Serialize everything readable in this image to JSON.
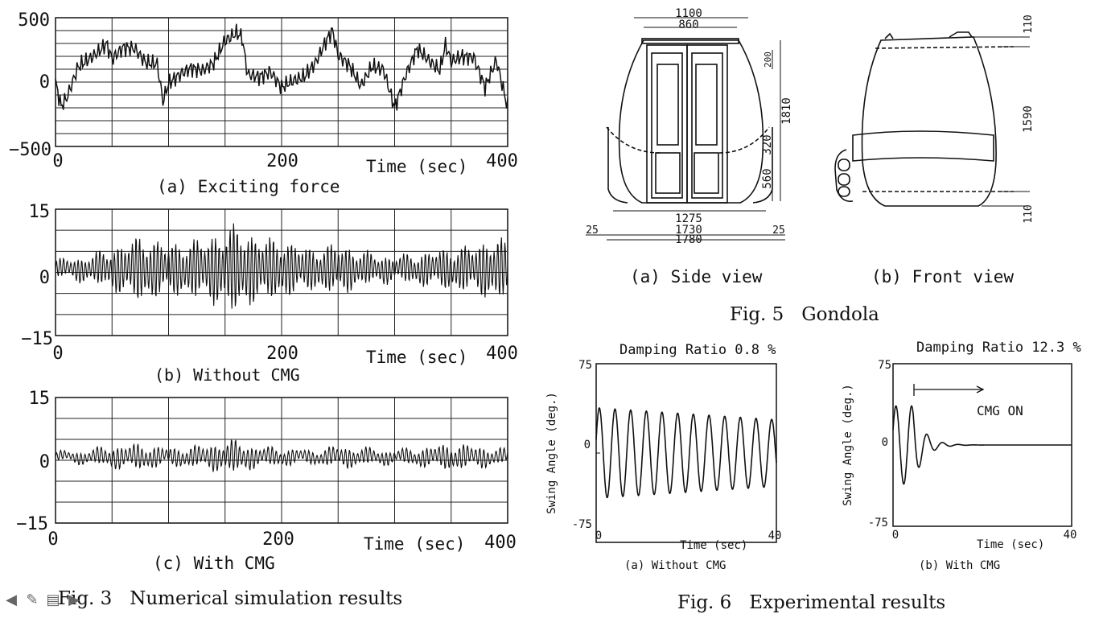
{
  "fig3": {
    "caption": "Fig. 3   Numerical simulation results",
    "panels": [
      {
        "caption": "(a) Exciting force",
        "ymax_label": "500",
        "ymid_label": "0",
        "ymin_label": "−500"
      },
      {
        "caption": "(b) Without CMG",
        "ymax_label": "15",
        "ymid_label": "0",
        "ymin_label": "−15"
      },
      {
        "caption": "(c) With CMG",
        "ymax_label": "15",
        "ymid_label": "0",
        "ymin_label": "−15"
      }
    ],
    "x_ticks": [
      "0",
      "200",
      "400"
    ],
    "xlabel": "Time (sec)"
  },
  "fig5": {
    "caption": "Fig. 5   Gondola",
    "side_caption": "(a) Side view",
    "front_caption": "(b) Front view",
    "dims": {
      "d1100": "1100",
      "d860": "860",
      "d200": "200",
      "d1810": "1810",
      "d320": "320",
      "d560": "560",
      "d1275": "1275",
      "d1730": "1730",
      "d1780": "1780",
      "d25a": "25",
      "d25b": "25",
      "f110a": "110",
      "f1590": "1590",
      "f110b": "110"
    }
  },
  "fig6": {
    "caption": "Fig. 6   Experimental results",
    "ylabel": "Swing Angle (deg.)",
    "xlabel": "Time (sec)",
    "y_ticks": [
      "75",
      "0",
      "-75"
    ],
    "x_ticks": [
      "0",
      "40"
    ],
    "left": {
      "title": "Damping Ratio 0.8 %",
      "caption": "(a) Without CMG"
    },
    "right": {
      "title": "Damping Ratio 12.3 %",
      "caption": "(b) With CMG",
      "annotation": "CMG ON"
    }
  },
  "chart_data": [
    {
      "type": "line",
      "title": "",
      "caption": "(a) Exciting force",
      "xlabel": "Time (sec)",
      "ylabel": "",
      "xlim": [
        0,
        400
      ],
      "ylim": [
        -500,
        500
      ],
      "grid": true,
      "series": [
        {
          "x": [
            0,
            5,
            10,
            20,
            30,
            40,
            45,
            50,
            60,
            70,
            80,
            90,
            95,
            100,
            110,
            120,
            130,
            140,
            150,
            160,
            165,
            170,
            180,
            190,
            200,
            210,
            220,
            230,
            240,
            245,
            250,
            260,
            270,
            280,
            290,
            300,
            310,
            320,
            330,
            340,
            345,
            350,
            360,
            370,
            380,
            390,
            400
          ],
          "values": [
            0,
            -190,
            -120,
            120,
            180,
            250,
            300,
            180,
            270,
            260,
            150,
            140,
            -150,
            -10,
            60,
            110,
            90,
            150,
            320,
            380,
            350,
            60,
            40,
            80,
            -40,
            10,
            40,
            150,
            330,
            400,
            210,
            130,
            -30,
            120,
            100,
            -200,
            60,
            260,
            170,
            90,
            290,
            160,
            200,
            190,
            -40,
            170,
            -200
          ]
        }
      ]
    },
    {
      "type": "line",
      "title": "",
      "caption": "(b) Without CMG",
      "xlabel": "Time (sec)",
      "ylabel": "",
      "xlim": [
        0,
        400
      ],
      "ylim": [
        -15,
        15
      ],
      "grid": true,
      "series": [
        {
          "x": [
            0,
            25,
            50,
            75,
            100,
            125,
            150,
            160,
            175,
            200,
            225,
            250,
            275,
            300,
            325,
            350,
            375,
            390,
            400
          ],
          "values": [
            2,
            3,
            5,
            8,
            6,
            7,
            9,
            11,
            8,
            7,
            5,
            6,
            4,
            3,
            4,
            5,
            6,
            8,
            6
          ]
        }
      ]
    },
    {
      "type": "line",
      "title": "",
      "caption": "(c) With CMG",
      "xlabel": "Time (sec)",
      "ylabel": "",
      "xlim": [
        0,
        400
      ],
      "ylim": [
        -15,
        15
      ],
      "grid": true,
      "series": [
        {
          "x": [
            0,
            25,
            50,
            75,
            100,
            125,
            150,
            160,
            175,
            200,
            225,
            250,
            275,
            300,
            325,
            350,
            375,
            390,
            400
          ],
          "values": [
            1,
            1.5,
            2.5,
            3,
            2,
            2.5,
            3.5,
            4,
            2.5,
            2,
            1.5,
            2.5,
            2,
            1.5,
            2.2,
            3,
            2.5,
            2,
            1.5
          ]
        }
      ]
    },
    {
      "type": "line",
      "title": "Damping Ratio 0.8 %",
      "caption": "(a) Without CMG",
      "xlabel": "Time (sec)",
      "ylabel": "Swing Angle (deg.)",
      "xlim": [
        0,
        40
      ],
      "ylim": [
        -75,
        75
      ],
      "grid": false,
      "series": [
        {
          "amplitude_start": 38,
          "amplitude_end": 28,
          "cycles": 11.5
        }
      ]
    },
    {
      "type": "line",
      "title": "Damping Ratio 12.3 %",
      "caption": "(b) With CMG",
      "xlabel": "Time (sec)",
      "ylabel": "Swing Angle (deg.)",
      "xlim": [
        0,
        40
      ],
      "ylim": [
        -75,
        75
      ],
      "grid": false,
      "annotations": [
        "CMG ON"
      ],
      "series": [
        {
          "amplitude_start": 36,
          "cmg_on_time": 4.5,
          "decays_to_zero_by": 14,
          "cycles_before_on": 2
        }
      ]
    }
  ]
}
